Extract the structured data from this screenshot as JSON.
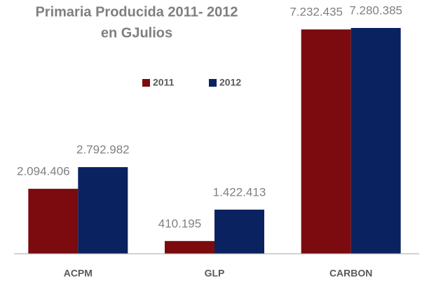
{
  "chart_data": {
    "type": "bar",
    "title": [
      "Primaria Producida 2011- 2012",
      "en GJulios"
    ],
    "categories": [
      "ACPM",
      "GLP",
      "CARBON"
    ],
    "series": [
      {
        "name": "2011",
        "color": "#7b0b0e",
        "values": [
          2094406,
          410195,
          7232435
        ],
        "value_labels": [
          "2.094.406",
          "410.195",
          "7.232.435"
        ]
      },
      {
        "name": "2012",
        "color": "#0b2260",
        "values": [
          2792982,
          1422413,
          7280385
        ],
        "value_labels": [
          "2.792.982",
          "1.422.413",
          "7.280.385"
        ]
      }
    ]
  }
}
